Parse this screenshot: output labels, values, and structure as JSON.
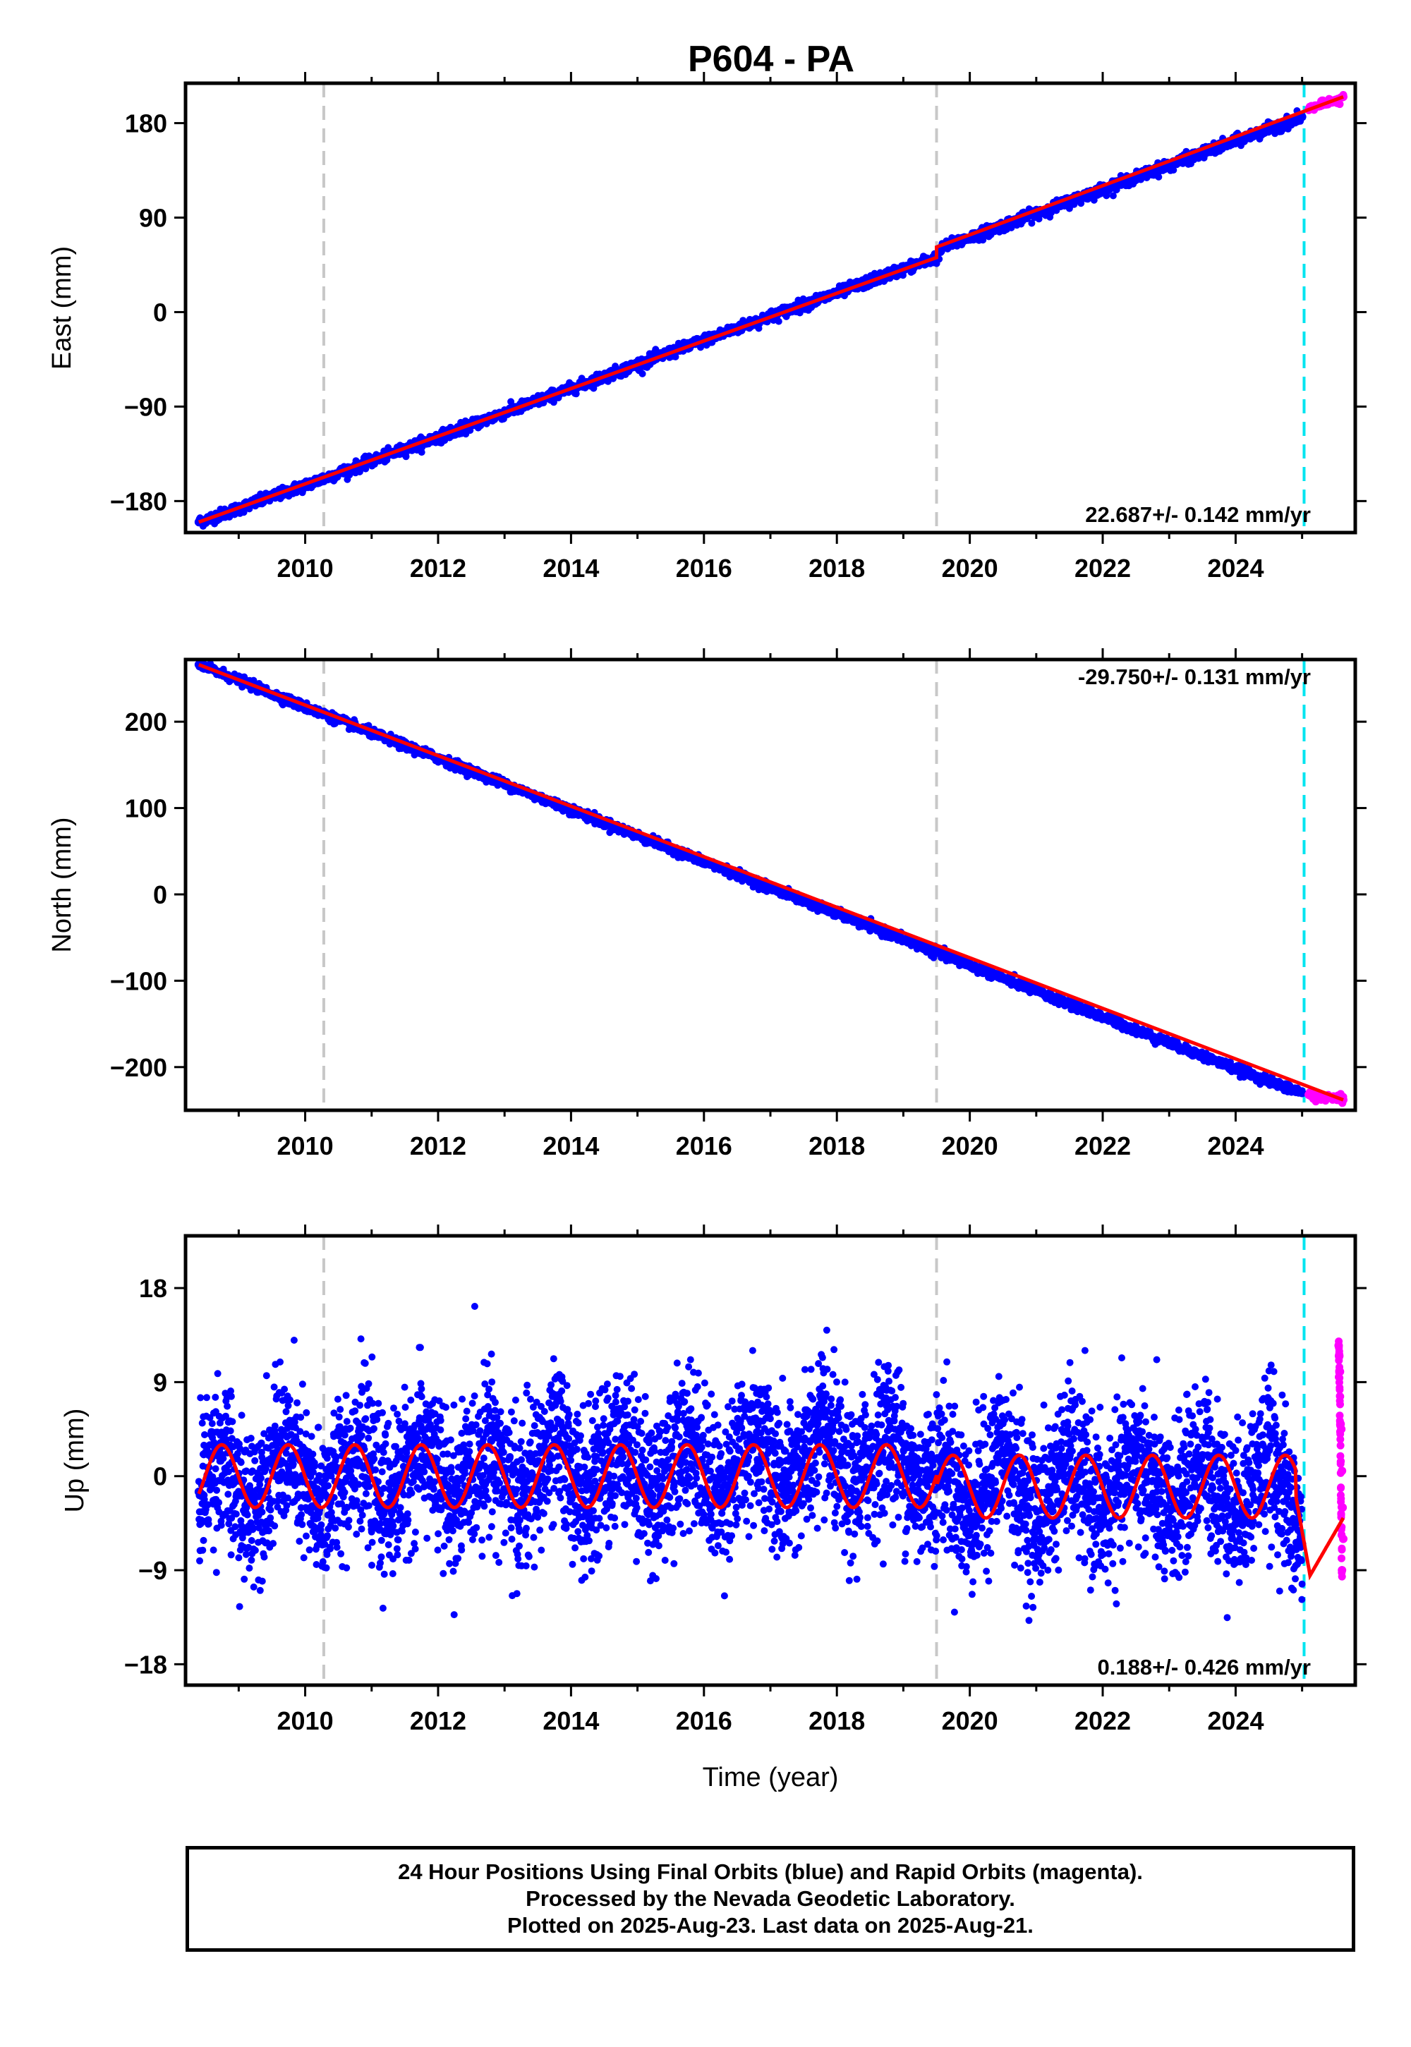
{
  "chart_data": [
    {
      "type": "scatter",
      "title": "P604 - PA",
      "xlabel": "",
      "ylabel": "East (mm)",
      "xlim": [
        2008.2,
        2025.8
      ],
      "ylim": [
        -210,
        218
      ],
      "xticks": [
        2010,
        2012,
        2014,
        2016,
        2018,
        2020,
        2022,
        2024
      ],
      "yticks": [
        -180,
        -90,
        0,
        90,
        180
      ],
      "rate_label": "22.687+/- 0.142 mm/yr",
      "equipment_change_lines": [
        2010.28,
        2019.5
      ],
      "rapid_start_line": 2025.03,
      "series": [
        {
          "name": "Final Orbits",
          "color": "#0000ff",
          "x": [
            2008.4,
            2009.0,
            2010.0,
            2011.0,
            2012.0,
            2013.0,
            2014.0,
            2015.0,
            2016.0,
            2017.0,
            2018.0,
            2019.0,
            2019.5,
            2019.6,
            2020.0,
            2021.0,
            2022.0,
            2023.0,
            2024.0,
            2025.0
          ],
          "y": [
            -200,
            -187,
            -165,
            -142,
            -119,
            -96,
            -73,
            -50,
            -27,
            -4,
            18,
            41,
            52,
            62,
            71,
            94,
            117,
            140,
            163,
            186
          ]
        },
        {
          "name": "Rapid Orbits",
          "color": "#ff00ff",
          "x": [
            2025.1,
            2025.3,
            2025.5,
            2025.62
          ],
          "y": [
            193,
            197,
            202,
            205
          ]
        },
        {
          "name": "model",
          "color": "#ff0000",
          "x": [
            2008.4,
            2019.5,
            2019.5,
            2025.62
          ],
          "y": [
            -200,
            52,
            62,
            205
          ]
        }
      ]
    },
    {
      "type": "scatter",
      "title": "",
      "xlabel": "",
      "ylabel": "North (mm)",
      "xlim": [
        2008.2,
        2025.8
      ],
      "ylim": [
        -250,
        272
      ],
      "xticks": [
        2010,
        2012,
        2014,
        2016,
        2018,
        2020,
        2022,
        2024
      ],
      "yticks": [
        -200,
        -100,
        0,
        100,
        200
      ],
      "rate_label": "-29.750+/- 0.131 mm/yr",
      "equipment_change_lines": [
        2010.28,
        2019.5
      ],
      "rapid_start_line": 2025.03,
      "series": [
        {
          "name": "Final Orbits",
          "color": "#0000ff",
          "x": [
            2008.4,
            2009.0,
            2010.0,
            2011.0,
            2012.0,
            2013.0,
            2014.0,
            2015.0,
            2016.0,
            2017.0,
            2018.0,
            2019.0,
            2019.5,
            2020.0,
            2021.0,
            2022.0,
            2023.0,
            2024.0,
            2025.0
          ],
          "y": [
            266,
            248,
            217,
            187,
            158,
            128,
            98,
            68,
            38,
            8,
            -22,
            -52,
            -67,
            -82,
            -112,
            -142,
            -172,
            -202,
            -230
          ]
        },
        {
          "name": "Rapid Orbits",
          "color": "#ff00ff",
          "x": [
            2025.1,
            2025.3,
            2025.5,
            2025.62
          ],
          "y": [
            -232,
            -235,
            -237,
            -238
          ]
        },
        {
          "name": "model",
          "color": "#ff0000",
          "x": [
            2008.4,
            2025.62
          ],
          "y": [
            266,
            -238
          ]
        }
      ]
    },
    {
      "type": "scatter",
      "title": "",
      "xlabel": "Time (year)",
      "ylabel": "Up (mm)",
      "xlim": [
        2008.2,
        2025.8
      ],
      "ylim": [
        -20,
        23
      ],
      "xticks": [
        2010,
        2012,
        2014,
        2016,
        2018,
        2020,
        2022,
        2024
      ],
      "yticks": [
        -18,
        -9,
        0,
        9,
        18
      ],
      "rate_label": "0.188+/- 0.426 mm/yr",
      "equipment_change_lines": [
        2010.28,
        2019.5
      ],
      "rapid_start_line": 2025.03,
      "series": [
        {
          "name": "Final Orbits",
          "color": "#0000ff",
          "x": [
            2008.4,
            2008.7,
            2009.1,
            2009.7,
            2010.2,
            2010.8,
            2011.2,
            2011.8,
            2012.2,
            2012.8,
            2013.2,
            2013.8,
            2014.2,
            2014.8,
            2015.2,
            2015.8,
            2016.2,
            2016.8,
            2017.2,
            2017.8,
            2018.2,
            2018.8,
            2019.2,
            2019.6,
            2020.0,
            2020.5,
            2021.0,
            2021.5,
            2022.0,
            2022.5,
            2023.0,
            2023.5,
            2024.0,
            2024.5,
            2025.0
          ],
          "y": [
            -1.5,
            2.5,
            -3.5,
            2.8,
            -3.5,
            3.0,
            -3.0,
            3.2,
            -2.8,
            3.4,
            -2.6,
            3.6,
            -2.4,
            3.8,
            -2.2,
            4.0,
            -2.0,
            4.2,
            -1.8,
            4.4,
            -1.6,
            4.6,
            -1.4,
            1.5,
            -4.0,
            2.5,
            -4.5,
            2.0,
            -4.0,
            2.0,
            -4.0,
            2.0,
            -4.0,
            2.5,
            -6.5
          ]
        },
        {
          "name": "Rapid Orbits",
          "color": "#ff00ff",
          "x": [
            2025.55,
            2025.56,
            2025.57,
            2025.58,
            2025.59,
            2025.6,
            2025.61,
            2025.62,
            2025.6
          ],
          "y": [
            12.5,
            11.5,
            10.0,
            5.0,
            4.5,
            0.5,
            -3.0,
            -6.0,
            -9.0
          ]
        },
        {
          "name": "model",
          "color": "#ff0000",
          "x": [
            2008.4,
            2019.5,
            2019.5,
            2024.85,
            2025.12,
            2025.62
          ],
          "y": [
            0,
            0,
            0,
            0,
            -9.5,
            -4.0
          ]
        }
      ]
    }
  ],
  "footer": {
    "line1": "24 Hour Positions Using Final Orbits (blue) and Rapid Orbits (magenta).",
    "line2": "Processed by the Nevada Geodetic Laboratory.",
    "line3": "Plotted on 2025-Aug-23. Last data on 2025-Aug-21."
  }
}
